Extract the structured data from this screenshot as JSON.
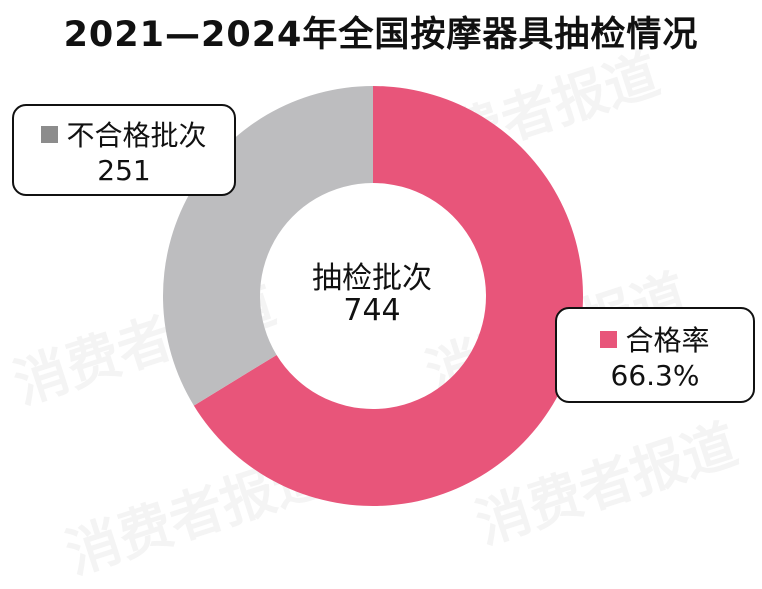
{
  "chart_data": {
    "type": "pie",
    "title": "2021—2024年全国按摩器具抽检情况",
    "categories": [
      "合格率",
      "不合格批次"
    ],
    "values": [
      493,
      251
    ],
    "total": 744,
    "center_label": "抽检批次",
    "labels": {
      "pass": {
        "name": "合格率",
        "value": "66.3%"
      },
      "fail": {
        "name": "不合格批次",
        "value": "251"
      }
    },
    "colors": {
      "pass": "#E8557A",
      "fail": "#BDBDBF",
      "fail_swatch": "#8C8C8C"
    }
  },
  "watermark": "消费者报道"
}
